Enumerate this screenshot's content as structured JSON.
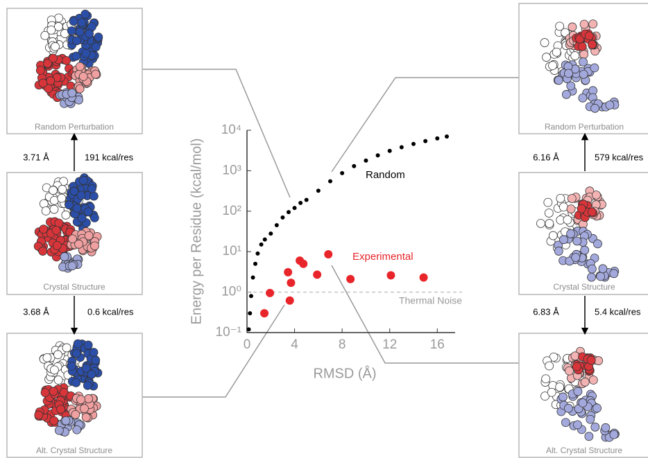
{
  "chart_data": {
    "type": "scatter",
    "x_label": "RMSD (Å)",
    "y_label": "Energy per Residue (kcal/mol)",
    "xlim": [
      0,
      17.5
    ],
    "ylim": [
      0.1,
      10000
    ],
    "log_y": true,
    "xticks": [
      0,
      4,
      8,
      12,
      16
    ],
    "yticks": [
      {
        "value": 0.1,
        "label": "10⁻¹"
      },
      {
        "value": 1,
        "label": "10⁰"
      },
      {
        "value": 10,
        "label": "10¹"
      },
      {
        "value": 100,
        "label": "10²"
      },
      {
        "value": 1000,
        "label": "10³"
      },
      {
        "value": 10000,
        "label": "10⁴"
      }
    ],
    "series": [
      {
        "name": "Random",
        "color": "#000000",
        "x": [
          0.15,
          0.25,
          0.35,
          0.5,
          0.7,
          0.9,
          1.2,
          1.5,
          2,
          2.5,
          3,
          3.5,
          4,
          4.5,
          5,
          6,
          7,
          8,
          9,
          10,
          11,
          12,
          13,
          14,
          15,
          16,
          16.8
        ],
        "values": [
          0.12,
          0.3,
          0.8,
          2.3,
          5,
          9,
          15,
          20,
          28,
          45,
          70,
          95,
          120,
          160,
          190,
          320,
          550,
          870,
          1300,
          1780,
          2400,
          3100,
          3800,
          4600,
          5400,
          6300,
          7000
        ]
      },
      {
        "name": "Experimental",
        "color": "#e8252a",
        "x": [
          1.46,
          1.93,
          3.45,
          3.7,
          3.6,
          4.44,
          4.74,
          5.9,
          6.84,
          8.7,
          12.1,
          14.85
        ],
        "values": [
          0.3,
          0.95,
          3.1,
          1.7,
          0.62,
          6.0,
          5.0,
          2.7,
          8.6,
          2.1,
          2.6,
          2.3
        ]
      }
    ],
    "reference_line": {
      "value": 1,
      "label": "Thermal Noise"
    }
  },
  "panels": {
    "left": [
      {
        "caption": "Random Perturbation"
      },
      {
        "caption": "Crystal Structure"
      },
      {
        "caption": "Alt. Crystal Structure"
      }
    ],
    "left_transitions": [
      {
        "rmsd": "3.71 Å",
        "energy": "191 kcal/res"
      },
      {
        "rmsd": "3.68 Å",
        "energy": "0.6 kcal/res"
      }
    ],
    "right": [
      {
        "caption": "Random Perturbation"
      },
      {
        "caption": "Crystal Structure"
      },
      {
        "caption": "Alt. Crystal Structure"
      }
    ],
    "right_transitions": [
      {
        "rmsd": "6.16 Å",
        "energy": "579 kcal/res"
      },
      {
        "rmsd": "6.83 Å",
        "energy": "5.4 kcal/res"
      }
    ]
  }
}
